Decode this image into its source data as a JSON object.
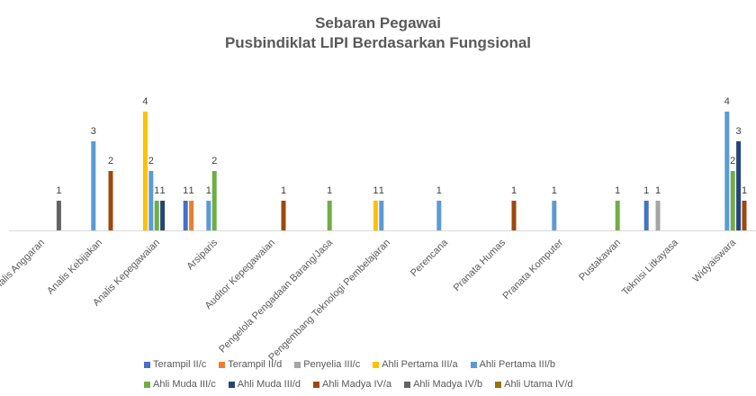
{
  "chart_data": {
    "type": "bar",
    "title": "Sebaran Pegawai",
    "subtitle": "Pusbindiklat LIPI Berdasarkan Fungsional",
    "xlabel": "",
    "ylabel": "",
    "ylim": [
      0,
      4
    ],
    "grid": false,
    "legend_position": "bottom",
    "data_labels": true,
    "categories": [
      "Analis Anggaran",
      "Analis Kebijakan",
      "Analis Kepegawaian",
      "Arsiparis",
      "Auditor Kepegawaian",
      "Pengelola Pengadaan Barang/Jasa",
      "Pengembang Teknologi Pembelajaran",
      "Perencana",
      "Pranata Humas",
      "Pranata Komputer",
      "Pustakawan",
      "Teknisi Litkayasa",
      "Widyaiswara"
    ],
    "series": [
      {
        "name": "Terampil II/c",
        "color": "#4472C4",
        "values": [
          null,
          null,
          null,
          1,
          null,
          null,
          null,
          null,
          null,
          null,
          null,
          1,
          null
        ]
      },
      {
        "name": "Terampil II/d",
        "color": "#ED7D31",
        "values": [
          null,
          null,
          null,
          1,
          null,
          null,
          null,
          null,
          null,
          null,
          null,
          null,
          null
        ]
      },
      {
        "name": "Penyelia III/c",
        "color": "#A5A5A5",
        "values": [
          null,
          null,
          null,
          null,
          null,
          null,
          null,
          null,
          null,
          null,
          null,
          1,
          null
        ]
      },
      {
        "name": "Ahli Pertama III/a",
        "color": "#FFC000",
        "values": [
          null,
          null,
          4,
          null,
          null,
          null,
          1,
          null,
          null,
          null,
          null,
          null,
          null
        ]
      },
      {
        "name": "Ahli Pertama III/b",
        "color": "#5B9BD5",
        "values": [
          null,
          3,
          2,
          1,
          null,
          null,
          1,
          1,
          null,
          1,
          null,
          null,
          4
        ]
      },
      {
        "name": "Ahli Muda III/c",
        "color": "#70AD47",
        "values": [
          null,
          null,
          1,
          2,
          null,
          1,
          null,
          null,
          null,
          null,
          1,
          null,
          2
        ]
      },
      {
        "name": "Ahli Muda III/d",
        "color": "#264478",
        "values": [
          null,
          null,
          1,
          null,
          null,
          null,
          null,
          null,
          null,
          null,
          null,
          null,
          3
        ]
      },
      {
        "name": "Ahli Madya IV/a",
        "color": "#9E480E",
        "values": [
          null,
          2,
          null,
          null,
          1,
          null,
          null,
          null,
          1,
          null,
          null,
          null,
          1
        ]
      },
      {
        "name": "Ahli Madya IV/b",
        "color": "#636363",
        "values": [
          1,
          null,
          null,
          null,
          null,
          null,
          null,
          null,
          null,
          null,
          null,
          null,
          null
        ]
      },
      {
        "name": "Ahli Utama IV/d",
        "color": "#997300",
        "values": [
          null,
          null,
          null,
          null,
          null,
          null,
          null,
          null,
          null,
          null,
          null,
          null,
          null
        ]
      }
    ]
  },
  "legend": {
    "rows": [
      [
        0,
        1,
        2,
        3,
        4
      ],
      [
        5,
        6,
        7,
        8,
        9
      ]
    ]
  }
}
